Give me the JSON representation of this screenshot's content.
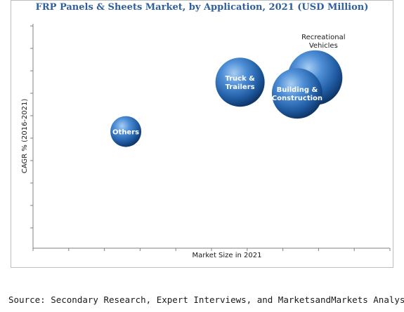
{
  "chart_data": {
    "type": "scatter",
    "title": "FRP Panels & Sheets Market, by Application, 2021 (USD Million)",
    "xlabel": "Market Size in 2021",
    "ylabel": "CAGR % (2016-2021)",
    "xlim": [
      0,
      100
    ],
    "ylim": [
      0,
      100
    ],
    "grid": false,
    "bubble_color": "#2f6db5",
    "series": [
      {
        "points": [
          {
            "label_lines": [
              "Others"
            ],
            "x": 26,
            "y": 52,
            "size": 22,
            "label_inside": true
          },
          {
            "label_lines": [
              "Truck &",
              "Trailers"
            ],
            "x": 58,
            "y": 74,
            "size": 35,
            "label_inside": true
          },
          {
            "label_lines": [
              "Recreational",
              "Vehicles"
            ],
            "x": 79,
            "y": 76,
            "size": 39,
            "label_inside": false
          },
          {
            "label_lines": [
              "Building &",
              "Construction"
            ],
            "x": 74,
            "y": 69,
            "size": 36,
            "label_inside": true
          }
        ]
      }
    ]
  },
  "source": "Source: Secondary Research, Expert Interviews, and MarketsandMarkets Analysis"
}
